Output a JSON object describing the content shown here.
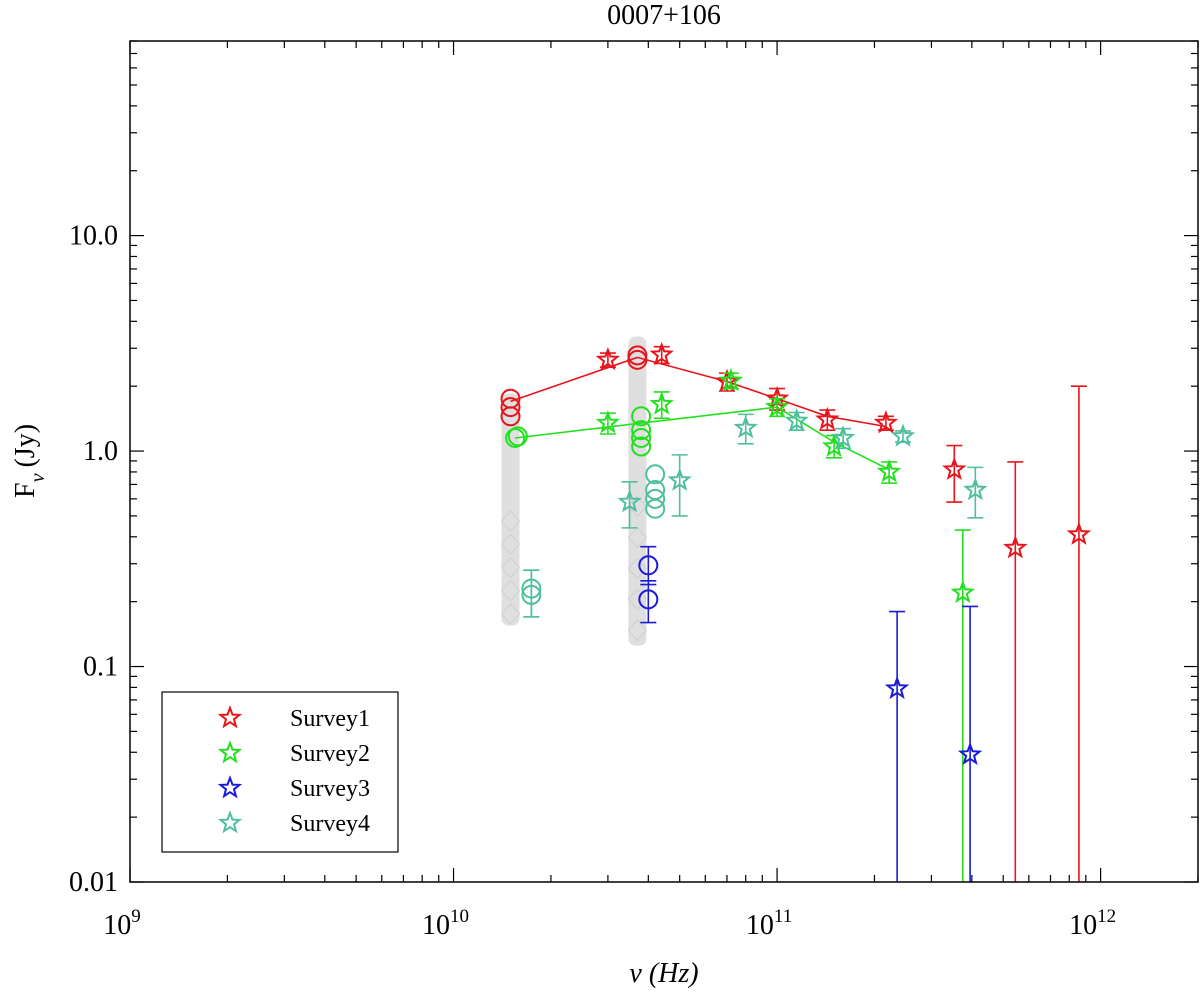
{
  "chart_data": {
    "type": "scatter",
    "title": "0007+106",
    "xlabel": "ν (Hz)",
    "ylabel_main": "F",
    "ylabel_sub": "ν",
    "ylabel_unit": "(Jy)",
    "x_scale": "log",
    "y_scale": "log",
    "xlim": [
      1000000000,
      2000000000000
    ],
    "ylim": [
      0.01,
      80
    ],
    "x_ticks": [
      {
        "value": 1000000000,
        "base": "10",
        "exp": "9"
      },
      {
        "value": 10000000000,
        "base": "10",
        "exp": "10"
      },
      {
        "value": 100000000000,
        "base": "10",
        "exp": "11"
      },
      {
        "value": 1000000000000,
        "base": "10",
        "exp": "12"
      }
    ],
    "y_ticks": [
      {
        "value": 0.01,
        "label": "0.01"
      },
      {
        "value": 0.1,
        "label": "0.1"
      },
      {
        "value": 1,
        "label": "1.0"
      },
      {
        "value": 10,
        "label": "10.0"
      }
    ],
    "legend_position": "bottom-left",
    "series": [
      {
        "name": "Survey1",
        "color": "#e8141b",
        "stars": [
          {
            "x": 30000000000,
            "y": 2.65,
            "lo": 2.45,
            "hi": 2.85
          },
          {
            "x": 44000000000,
            "y": 2.8,
            "lo": 2.55,
            "hi": 3.05
          },
          {
            "x": 70000000000,
            "y": 2.1,
            "lo": 1.9,
            "hi": 2.3
          },
          {
            "x": 100000000000,
            "y": 1.75,
            "lo": 1.55,
            "hi": 1.95
          },
          {
            "x": 143000000000,
            "y": 1.4,
            "lo": 1.25,
            "hi": 1.55
          },
          {
            "x": 217000000000,
            "y": 1.35,
            "lo": 1.25,
            "hi": 1.45
          },
          {
            "x": 353000000000,
            "y": 0.82,
            "lo": 0.58,
            "hi": 1.06
          },
          {
            "x": 545000000000,
            "y": 0.355,
            "lo": 0.0001,
            "hi": 0.89
          },
          {
            "x": 857000000000,
            "y": 0.41,
            "lo": 0.0001,
            "hi": 2.0
          }
        ],
        "circles": [
          {
            "x": 15000000000,
            "y": 1.45
          },
          {
            "x": 15000000000,
            "y": 1.6
          },
          {
            "x": 15000000000,
            "y": 1.75
          },
          {
            "x": 37000000000,
            "y": 2.65
          },
          {
            "x": 37000000000,
            "y": 2.78
          }
        ],
        "line": [
          [
            15000000000,
            1.7
          ],
          [
            37000000000,
            2.72
          ],
          [
            70000000000,
            2.1
          ],
          [
            100000000000,
            1.75
          ],
          [
            143000000000,
            1.45
          ],
          [
            217000000000,
            1.3
          ]
        ]
      },
      {
        "name": "Survey2",
        "color": "#22e01e",
        "stars": [
          {
            "x": 30000000000,
            "y": 1.35,
            "lo": 1.2,
            "hi": 1.5
          },
          {
            "x": 44000000000,
            "y": 1.65,
            "lo": 1.42,
            "hi": 1.88
          },
          {
            "x": 72000000000,
            "y": 2.12,
            "lo": 1.95,
            "hi": 2.3
          },
          {
            "x": 100000000000,
            "y": 1.6,
            "lo": 1.45,
            "hi": 1.75
          },
          {
            "x": 150000000000,
            "y": 1.05,
            "lo": 0.93,
            "hi": 1.18
          },
          {
            "x": 222000000000,
            "y": 0.8,
            "lo": 0.71,
            "hi": 0.89
          },
          {
            "x": 375000000000,
            "y": 0.22,
            "lo": 0.0001,
            "hi": 0.43
          }
        ],
        "circles": [
          {
            "x": 15500000000,
            "y": 1.15
          },
          {
            "x": 15800000000,
            "y": 1.17
          },
          {
            "x": 38000000000,
            "y": 1.05
          },
          {
            "x": 38000000000,
            "y": 1.15
          },
          {
            "x": 38000000000,
            "y": 1.25
          },
          {
            "x": 38000000000,
            "y": 1.45
          }
        ],
        "line": [
          [
            15500000000,
            1.15
          ],
          [
            100000000000,
            1.6
          ],
          [
            150000000000,
            1.1
          ],
          [
            222000000000,
            0.82
          ]
        ]
      },
      {
        "name": "Survey3",
        "color": "#1a1ad8",
        "stars": [
          {
            "x": 235000000000,
            "y": 0.079,
            "lo": 0.0001,
            "hi": 0.18
          },
          {
            "x": 395000000000,
            "y": 0.039,
            "lo": 0.0001,
            "hi": 0.19
          }
        ],
        "circles": [
          {
            "x": 40000000000,
            "y": 0.205,
            "lo": 0.16,
            "hi": 0.25
          },
          {
            "x": 40000000000,
            "y": 0.295,
            "lo": 0.24,
            "hi": 0.36
          }
        ],
        "line": []
      },
      {
        "name": "Survey4",
        "color": "#4fbf9e",
        "stars": [
          {
            "x": 35000000000,
            "y": 0.58,
            "lo": 0.44,
            "hi": 0.72
          },
          {
            "x": 50000000000,
            "y": 0.73,
            "lo": 0.5,
            "hi": 0.96
          },
          {
            "x": 80000000000,
            "y": 1.28,
            "lo": 1.08,
            "hi": 1.48
          },
          {
            "x": 115000000000,
            "y": 1.38,
            "lo": 1.25,
            "hi": 1.51
          },
          {
            "x": 160000000000,
            "y": 1.15,
            "lo": 1.03,
            "hi": 1.27
          },
          {
            "x": 245000000000,
            "y": 1.17,
            "lo": 1.1,
            "hi": 1.24
          },
          {
            "x": 410000000000,
            "y": 0.66,
            "lo": 0.49,
            "hi": 0.84
          }
        ],
        "circles": [
          {
            "x": 17400000000,
            "y": 0.215,
            "lo": 0.17,
            "hi": 0.28
          },
          {
            "x": 17400000000,
            "y": 0.23,
            "lo": 0.17,
            "hi": 0.28
          },
          {
            "x": 42000000000,
            "y": 0.54
          },
          {
            "x": 42000000000,
            "y": 0.6
          },
          {
            "x": 42000000000,
            "y": 0.66
          },
          {
            "x": 42000000000,
            "y": 0.78
          }
        ],
        "line": []
      }
    ],
    "gray_band": {
      "color": "#d9d9d9",
      "columns": [
        {
          "x": 15000000000,
          "y_low": 0.155,
          "y_high": 1.85
        },
        {
          "x": 37000000000,
          "y_low": 0.125,
          "y_high": 3.4
        }
      ]
    }
  }
}
